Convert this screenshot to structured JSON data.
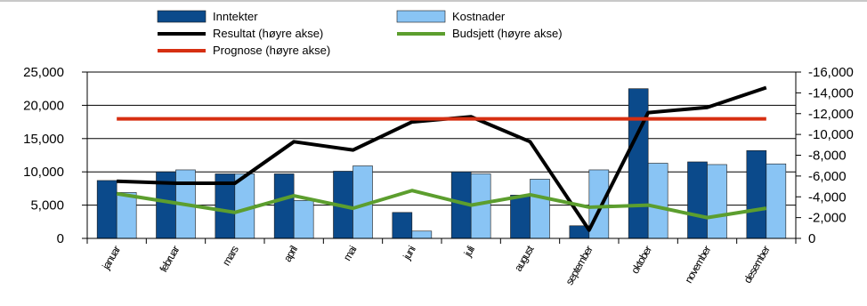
{
  "chart_data": {
    "type": "bar",
    "categories": [
      "januar",
      "februar",
      "mars",
      "april",
      "mai",
      "juni",
      "juli",
      "august",
      "september",
      "oktober",
      "november",
      "desember"
    ],
    "series": [
      {
        "name": "Inntekter",
        "kind": "bar",
        "axis": "left",
        "color": "#0b4a8b",
        "values": [
          8700,
          10000,
          9700,
          9700,
          10100,
          3900,
          10000,
          6500,
          1900,
          22500,
          11500,
          13200
        ]
      },
      {
        "name": "Kostnader",
        "kind": "bar",
        "axis": "left",
        "color": "#89c4f4",
        "values": [
          6900,
          10300,
          9700,
          5700,
          10900,
          1100,
          9700,
          8900,
          10300,
          11300,
          11100,
          11200
        ]
      },
      {
        "name": "Resultat (høyre akse)",
        "kind": "line",
        "axis": "right",
        "color": "#000000",
        "values": [
          -5500,
          -5300,
          -5300,
          -9300,
          -8500,
          -11200,
          -11700,
          -9300,
          -800,
          -12100,
          -12600,
          -14500
        ]
      },
      {
        "name": "Budsjett (høyre akse)",
        "kind": "line",
        "axis": "right",
        "color": "#5c9e2e",
        "values": [
          -4300,
          -3400,
          -2500,
          -4100,
          -2900,
          -4600,
          -3200,
          -4200,
          -3000,
          -3200,
          -2000,
          -2900
        ]
      },
      {
        "name": "Prognose (høyre akse)",
        "kind": "line",
        "axis": "right",
        "color": "#d62f12",
        "values": [
          -11500,
          -11500,
          -11500,
          -11500,
          -11500,
          -11500,
          -11500,
          -11500,
          -11500,
          -11500,
          -11500,
          -11500
        ]
      }
    ],
    "left_axis": {
      "min": 0,
      "max": 25000,
      "step": 5000,
      "tick_labels": [
        "0",
        "5,000",
        "10,000",
        "15,000",
        "20,000",
        "25,000"
      ]
    },
    "right_axis": {
      "min": 0,
      "max": -16000,
      "step": -2000,
      "tick_labels": [
        "0",
        "-2,000",
        "-4,000",
        "-6,000",
        "-8,000",
        "-10,000",
        "-12,000",
        "-14,000",
        "-16,000"
      ]
    },
    "grid": true,
    "legend_position": "top"
  }
}
